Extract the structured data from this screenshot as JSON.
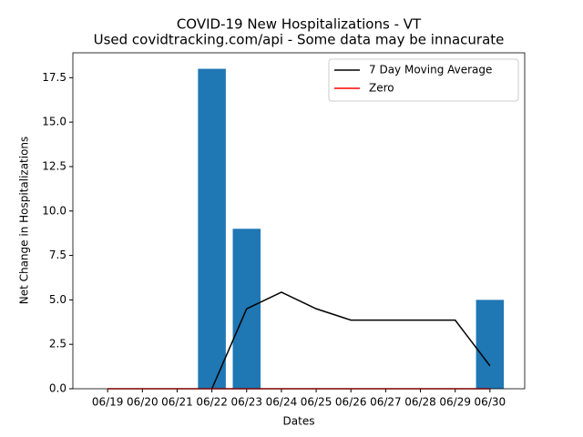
{
  "chart_data": {
    "type": "bar",
    "title": "COVID-19 New Hospitalizations - VT",
    "subtitle": "Used covidtracking.com/api - Some data may be innacurate",
    "xlabel": "Dates",
    "ylabel": "Net Change in Hospitalizations",
    "categories": [
      "06/19",
      "06/20",
      "06/21",
      "06/22",
      "06/23",
      "06/24",
      "06/25",
      "06/26",
      "06/27",
      "06/28",
      "06/29",
      "06/30"
    ],
    "values": [
      0,
      0,
      0,
      18,
      9,
      0,
      0,
      0,
      0,
      0,
      0,
      5
    ],
    "color": "#1f77b4",
    "series": [
      {
        "name": "7 Day Moving Average",
        "color": "#000000",
        "values": [
          null,
          null,
          null,
          0,
          4.5,
          5.43,
          4.5,
          3.86,
          3.86,
          3.86,
          3.86,
          1.29
        ]
      },
      {
        "name": "Zero",
        "color": "#ff0000",
        "values": [
          0,
          0,
          0,
          0,
          0,
          0,
          0,
          0,
          0,
          0,
          0,
          0
        ]
      }
    ],
    "ylim": [
      0,
      18.9
    ],
    "yticks": [
      {
        "value": 0,
        "label": "0.0"
      },
      2.5,
      {
        "value": 5,
        "label": "5.0"
      },
      7.5,
      {
        "value": 10,
        "label": "10.0"
      },
      12.5,
      {
        "value": 15,
        "label": "15.0"
      },
      17.5
    ],
    "legend": "upper right"
  }
}
